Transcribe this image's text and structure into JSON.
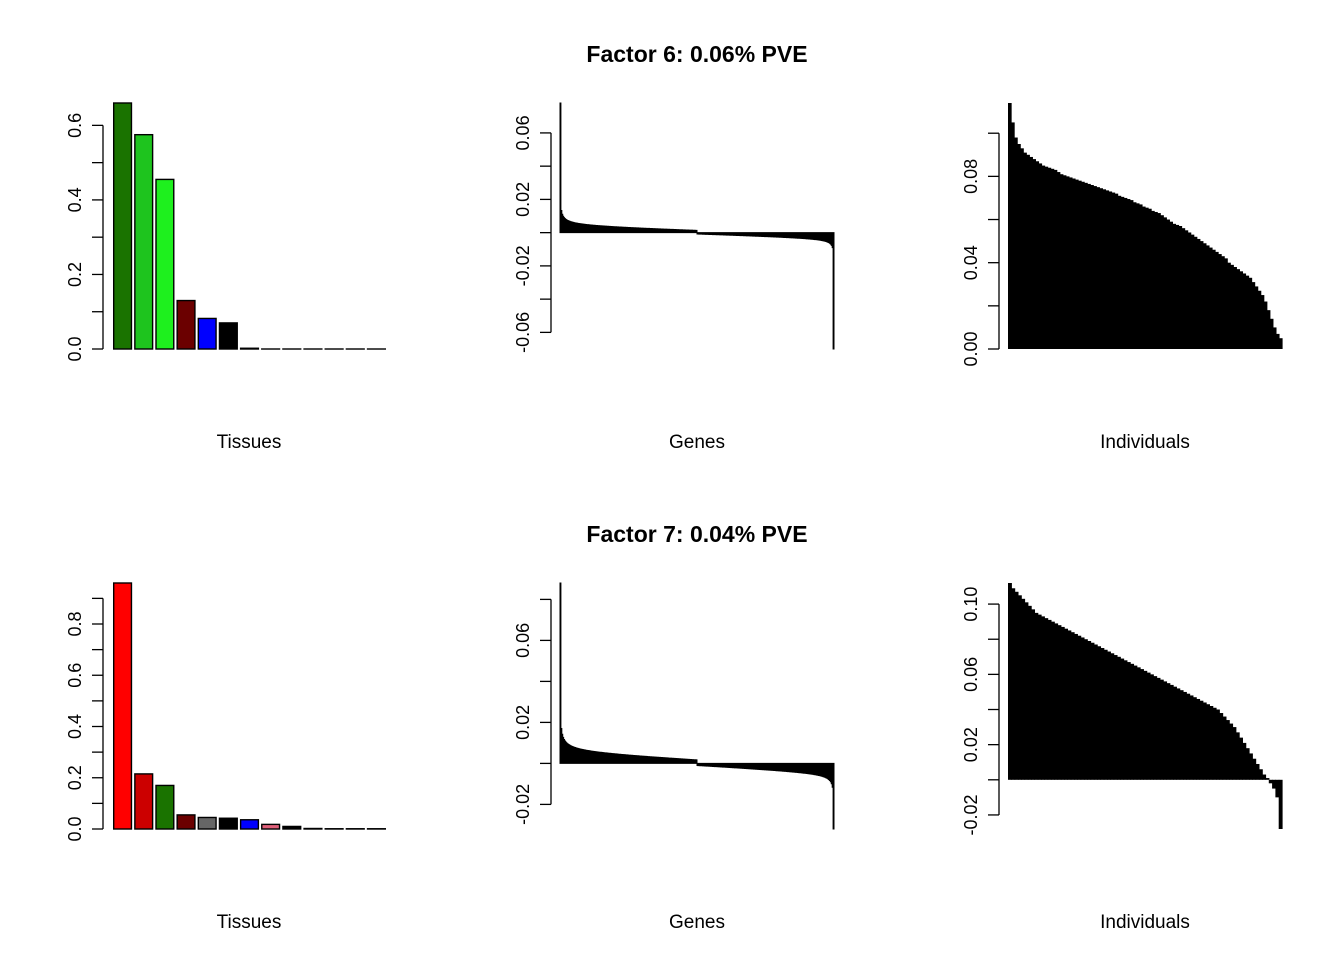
{
  "chart_data": [
    {
      "factor": "Factor 6: 0.06% PVE",
      "panels": [
        {
          "type": "bar",
          "xlabel": "Tissues",
          "values": [
            0.66,
            0.575,
            0.455,
            0.13,
            0.082,
            0.07,
            0.002,
            0.0,
            0.0,
            0.0,
            0.0,
            0.0,
            0.0
          ],
          "colors": [
            "#1a7300",
            "#1ec41e",
            "#1ef01e",
            "#6b0000",
            "#0000ff",
            "#000000",
            "#000000",
            "#000000",
            "#000000",
            "#000000",
            "#000000",
            "#000000",
            "#000000"
          ],
          "ylim": [
            0,
            0.66
          ],
          "yticks": [
            0.0,
            0.2,
            0.4,
            0.6
          ],
          "yticklabels": [
            "0.0",
            "0.2",
            "0.4",
            "0.6"
          ],
          "minor_ticks": [
            0.1,
            0.3,
            0.5
          ]
        },
        {
          "type": "sorted-loadings",
          "xlabel": "Genes",
          "ylim": [
            -0.07,
            0.078
          ],
          "yticks": [
            -0.06,
            -0.02,
            0.02,
            0.06
          ],
          "yticklabels": [
            "-0.06",
            "-0.02",
            "0.02",
            "0.06"
          ],
          "minor_ticks": [
            -0.04,
            0.0,
            0.04
          ],
          "n": 300,
          "max": 0.078,
          "min": -0.07,
          "alpha": 0.012,
          "beta": 0.0025,
          "s": 0.06
        },
        {
          "type": "sorted-loadings",
          "xlabel": "Individuals",
          "ylim": [
            0,
            0.114
          ],
          "yticks": [
            0.0,
            0.04,
            0.08
          ],
          "yticklabels": [
            "0.00",
            "0.04",
            "0.08"
          ],
          "minor_ticks": [
            0.02,
            0.06,
            0.1
          ],
          "step_values": [
            0.114,
            0.105,
            0.098,
            0.095,
            0.093,
            0.091,
            0.09,
            0.089,
            0.088,
            0.087,
            0.086,
            0.085,
            0.0845,
            0.084,
            0.0835,
            0.083,
            0.082,
            0.081,
            0.0805,
            0.08,
            0.0795,
            0.079,
            0.0785,
            0.078,
            0.0775,
            0.077,
            0.0765,
            0.076,
            0.0755,
            0.075,
            0.0745,
            0.074,
            0.0735,
            0.073,
            0.0725,
            0.072,
            0.071,
            0.0705,
            0.07,
            0.0695,
            0.069,
            0.068,
            0.0675,
            0.067,
            0.066,
            0.0655,
            0.065,
            0.064,
            0.0635,
            0.063,
            0.062,
            0.061,
            0.06,
            0.059,
            0.058,
            0.0575,
            0.057,
            0.056,
            0.055,
            0.054,
            0.053,
            0.052,
            0.051,
            0.05,
            0.049,
            0.048,
            0.047,
            0.046,
            0.045,
            0.044,
            0.043,
            0.042,
            0.04,
            0.039,
            0.038,
            0.037,
            0.036,
            0.035,
            0.034,
            0.033,
            0.031,
            0.029,
            0.027,
            0.025,
            0.022,
            0.018,
            0.014,
            0.01,
            0.007,
            0.005
          ]
        }
      ]
    },
    {
      "factor": "Factor 7: 0.04% PVE",
      "panels": [
        {
          "type": "bar",
          "xlabel": "Tissues",
          "values": [
            0.96,
            0.215,
            0.17,
            0.055,
            0.045,
            0.042,
            0.036,
            0.018,
            0.01,
            0.002,
            0.001,
            0.001,
            0.001
          ],
          "colors": [
            "#ff0000",
            "#cc0000",
            "#1a7300",
            "#6b0000",
            "#666666",
            "#000000",
            "#0000ff",
            "#e0607a",
            "#000000",
            "#000000",
            "#000000",
            "#000000",
            "#000000"
          ],
          "ylim": [
            0,
            0.96
          ],
          "yticks": [
            0.0,
            0.2,
            0.4,
            0.6,
            0.8
          ],
          "yticklabels": [
            "0.0",
            "0.2",
            "0.4",
            "0.6",
            "0.8"
          ],
          "minor_ticks": [
            0.1,
            0.3,
            0.5,
            0.7,
            0.9
          ]
        },
        {
          "type": "sorted-loadings",
          "xlabel": "Genes",
          "ylim": [
            -0.032,
            0.088
          ],
          "yticks": [
            -0.02,
            0.02,
            0.06
          ],
          "yticklabels": [
            "-0.02",
            "0.02",
            "0.06"
          ],
          "minor_ticks": [
            0.0,
            0.04,
            0.08
          ],
          "n": 300,
          "max": 0.088,
          "min": -0.032,
          "alpha": 0.015,
          "beta": 0.0035,
          "s": 0.06
        },
        {
          "type": "sorted-loadings",
          "xlabel": "Individuals",
          "ylim": [
            -0.028,
            0.112
          ],
          "yticks": [
            -0.02,
            0.02,
            0.06,
            0.1
          ],
          "yticklabels": [
            "-0.02",
            "0.02",
            "0.06",
            "0.10"
          ],
          "minor_ticks": [
            0.0,
            0.04,
            0.08
          ],
          "step_values": [
            0.112,
            0.109,
            0.107,
            0.105,
            0.103,
            0.101,
            0.099,
            0.097,
            0.095,
            0.094,
            0.093,
            0.092,
            0.091,
            0.09,
            0.089,
            0.088,
            0.087,
            0.086,
            0.085,
            0.084,
            0.083,
            0.082,
            0.081,
            0.08,
            0.079,
            0.078,
            0.077,
            0.076,
            0.075,
            0.074,
            0.073,
            0.072,
            0.071,
            0.07,
            0.069,
            0.068,
            0.067,
            0.066,
            0.065,
            0.064,
            0.063,
            0.062,
            0.061,
            0.06,
            0.059,
            0.058,
            0.057,
            0.056,
            0.055,
            0.054,
            0.053,
            0.052,
            0.051,
            0.05,
            0.049,
            0.048,
            0.047,
            0.046,
            0.045,
            0.044,
            0.043,
            0.042,
            0.041,
            0.04,
            0.038,
            0.036,
            0.034,
            0.032,
            0.03,
            0.027,
            0.024,
            0.021,
            0.018,
            0.015,
            0.012,
            0.009,
            0.006,
            0.003,
            0.001,
            -0.002,
            -0.005,
            -0.01,
            -0.028
          ]
        }
      ]
    }
  ]
}
